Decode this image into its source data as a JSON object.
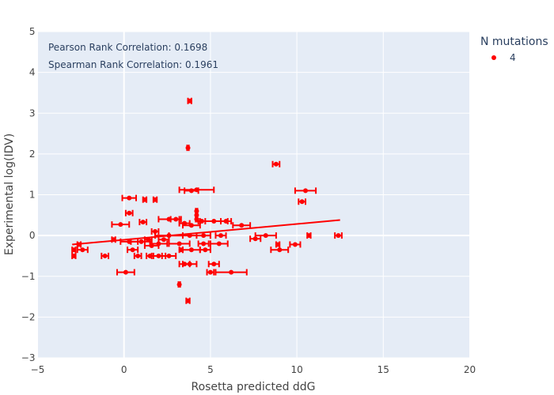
{
  "chart_data": {
    "type": "scatter",
    "xlabel": "Rosetta predicted ddG",
    "ylabel": "Experimental log(IDV)",
    "xlim": [
      -5,
      20
    ],
    "ylim": [
      -3,
      5
    ],
    "xticks": [
      -5,
      0,
      5,
      10,
      15,
      20
    ],
    "yticks": [
      -3,
      -2,
      -1,
      0,
      1,
      2,
      3,
      4,
      5
    ],
    "xtick_labels": [
      "−5",
      "0",
      "5",
      "10",
      "15",
      "20"
    ],
    "ytick_labels": [
      "−3",
      "−2",
      "−1",
      "0",
      "1",
      "2",
      "3",
      "4",
      "5"
    ],
    "grid": true,
    "legend_position": "top-right",
    "legend": {
      "title": "N mutations",
      "entries": [
        "4"
      ]
    },
    "annotations": [
      "Pearson Rank Correlation: 0.1698",
      "Spearman Rank Correlation: 0.1961"
    ],
    "colors": {
      "series": "#ff0000",
      "plot_bg": "#e5ecf6",
      "grid": "#ffffff"
    },
    "series": [
      {
        "name": "4",
        "points": [
          {
            "x": 3.8,
            "y": 3.3,
            "ex": 0.1
          },
          {
            "x": 3.7,
            "y": 2.15,
            "ex": 0.05
          },
          {
            "x": 8.8,
            "y": 1.75,
            "ex": 0.2
          },
          {
            "x": 10.5,
            "y": 1.1,
            "ex": 0.6
          },
          {
            "x": 4.2,
            "y": 1.12,
            "ex": 1.0
          },
          {
            "x": 3.9,
            "y": 1.1,
            "ex": 0.4
          },
          {
            "x": 0.3,
            "y": 0.92,
            "ex": 0.4
          },
          {
            "x": 1.2,
            "y": 0.88,
            "ex": 0.1
          },
          {
            "x": 1.8,
            "y": 0.88,
            "ex": 0.1
          },
          {
            "x": 10.3,
            "y": 0.83,
            "ex": 0.2
          },
          {
            "x": 4.2,
            "y": 0.6,
            "ex": 0.05
          },
          {
            "x": 0.3,
            "y": 0.55,
            "ex": 0.2
          },
          {
            "x": 4.2,
            "y": 0.5,
            "ex": 0.05
          },
          {
            "x": 2.6,
            "y": 0.4,
            "ex": 0.6
          },
          {
            "x": 3.0,
            "y": 0.4,
            "ex": 0.3
          },
          {
            "x": 4.2,
            "y": 0.4,
            "ex": 0.05
          },
          {
            "x": 4.5,
            "y": 0.35,
            "ex": 0.2
          },
          {
            "x": 5.2,
            "y": 0.35,
            "ex": 0.8
          },
          {
            "x": 5.9,
            "y": 0.35,
            "ex": 0.3
          },
          {
            "x": 1.1,
            "y": 0.33,
            "ex": 0.2
          },
          {
            "x": 3.5,
            "y": 0.3,
            "ex": 0.3
          },
          {
            "x": -0.2,
            "y": 0.27,
            "ex": 0.5
          },
          {
            "x": 6.8,
            "y": 0.25,
            "ex": 0.5
          },
          {
            "x": 3.9,
            "y": 0.25,
            "ex": 0.5
          },
          {
            "x": 1.8,
            "y": 0.1,
            "ex": 0.2
          },
          {
            "x": 8.2,
            "y": 0.0,
            "ex": 0.6
          },
          {
            "x": 3.8,
            "y": 0.0,
            "ex": 1.2
          },
          {
            "x": 2.6,
            "y": 0.0,
            "ex": 0.8
          },
          {
            "x": 4.6,
            "y": 0.0,
            "ex": 0.4
          },
          {
            "x": 5.6,
            "y": 0.0,
            "ex": 0.3
          },
          {
            "x": 10.7,
            "y": 0.0,
            "ex": 0.1
          },
          {
            "x": 12.4,
            "y": 0.0,
            "ex": 0.2
          },
          {
            "x": 7.6,
            "y": -0.08,
            "ex": 0.3
          },
          {
            "x": -0.6,
            "y": -0.1,
            "ex": 0.1
          },
          {
            "x": 1.4,
            "y": -0.1,
            "ex": 0.2
          },
          {
            "x": 2.3,
            "y": -0.1,
            "ex": 0.3
          },
          {
            "x": 0.3,
            "y": -0.15,
            "ex": 0.5
          },
          {
            "x": 1.0,
            "y": -0.15,
            "ex": 0.6
          },
          {
            "x": 2.0,
            "y": -0.2,
            "ex": 0.5
          },
          {
            "x": 3.2,
            "y": -0.2,
            "ex": 0.6
          },
          {
            "x": 4.6,
            "y": -0.2,
            "ex": 0.3
          },
          {
            "x": 5.5,
            "y": -0.2,
            "ex": 0.5
          },
          {
            "x": 8.9,
            "y": -0.22,
            "ex": 0.1
          },
          {
            "x": 9.9,
            "y": -0.22,
            "ex": 0.3
          },
          {
            "x": -2.6,
            "y": -0.22,
            "ex": 0.1
          },
          {
            "x": 1.6,
            "y": -0.25,
            "ex": 0.4
          },
          {
            "x": -2.4,
            "y": -0.35,
            "ex": 0.3
          },
          {
            "x": -2.9,
            "y": -0.35,
            "ex": 0.1
          },
          {
            "x": 0.5,
            "y": -0.35,
            "ex": 0.3
          },
          {
            "x": 3.3,
            "y": -0.35,
            "ex": 0.1
          },
          {
            "x": 3.9,
            "y": -0.35,
            "ex": 0.5
          },
          {
            "x": 4.7,
            "y": -0.35,
            "ex": 0.3
          },
          {
            "x": 9.0,
            "y": -0.35,
            "ex": 0.5
          },
          {
            "x": -1.1,
            "y": -0.5,
            "ex": 0.2
          },
          {
            "x": -2.9,
            "y": -0.5,
            "ex": 0.1
          },
          {
            "x": 0.8,
            "y": -0.5,
            "ex": 0.2
          },
          {
            "x": 1.5,
            "y": -0.5,
            "ex": 0.2
          },
          {
            "x": 2.0,
            "y": -0.5,
            "ex": 0.4
          },
          {
            "x": 2.6,
            "y": -0.5,
            "ex": 0.4
          },
          {
            "x": 3.5,
            "y": -0.7,
            "ex": 0.3
          },
          {
            "x": 3.8,
            "y": -0.7,
            "ex": 0.4
          },
          {
            "x": 5.2,
            "y": -0.7,
            "ex": 0.3
          },
          {
            "x": 0.1,
            "y": -0.9,
            "ex": 0.5
          },
          {
            "x": 5.0,
            "y": -0.9,
            "ex": 0.2
          },
          {
            "x": 6.2,
            "y": -0.9,
            "ex": 0.9
          },
          {
            "x": 3.2,
            "y": -1.2,
            "ex": 0.05
          },
          {
            "x": 3.7,
            "y": -1.6,
            "ex": 0.1
          }
        ]
      }
    ],
    "trendline": {
      "x": [
        -3,
        12.5
      ],
      "y": [
        -0.22,
        0.38
      ]
    }
  }
}
